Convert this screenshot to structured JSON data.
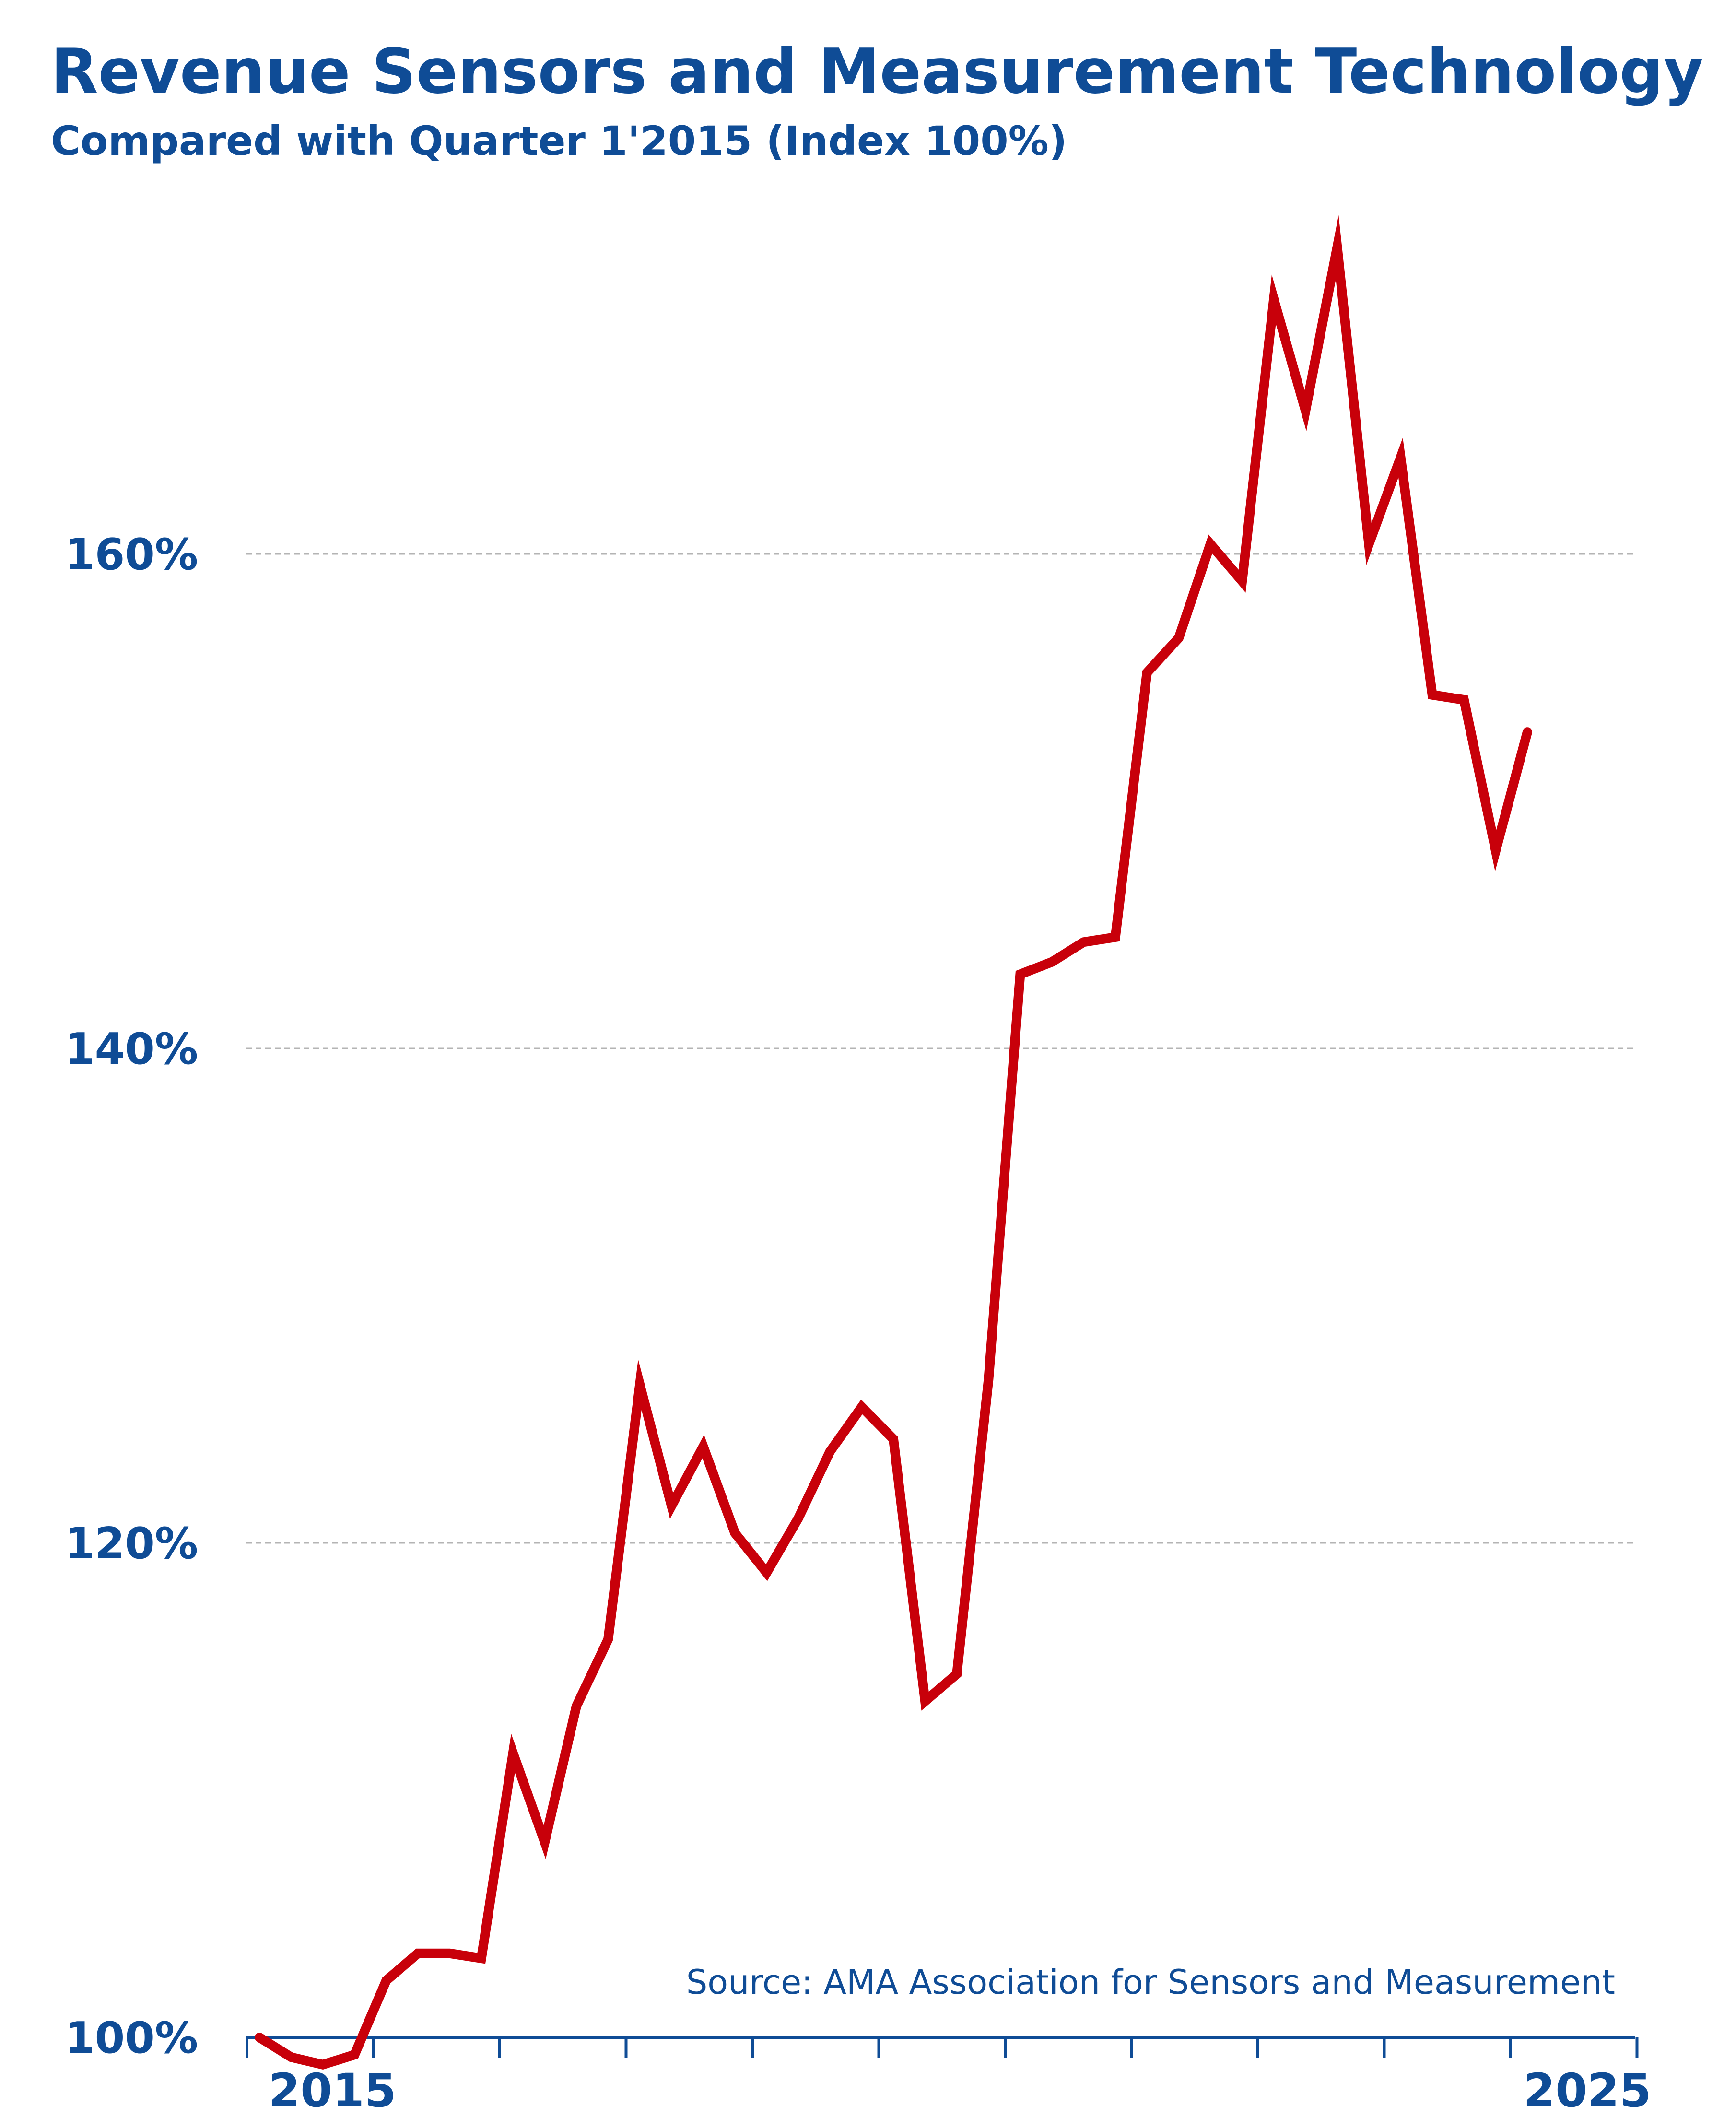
{
  "chart_data": {
    "type": "line",
    "title": "Revenue Sensors and Measurement Technology",
    "subtitle": "Compared with Quarter 1'2015 (Index 100%)",
    "source": "Source: AMA Association  for Sensors and Measurement",
    "xlabel": "",
    "ylabel": "",
    "x_tick_labels": [
      "2015",
      "2025"
    ],
    "y_ticks": [
      100,
      120,
      140,
      160
    ],
    "y_tick_labels": [
      "100%",
      "120%",
      "140%",
      "160%"
    ],
    "ylim": [
      100,
      175
    ],
    "grid": true,
    "colors": {
      "line": "#c8000a",
      "text": "#0f4c96",
      "axis": "#0f4c96",
      "grid": "#b4b4b4"
    },
    "series": [
      {
        "values": [
          100.0,
          99.2,
          98.9,
          99.3,
          102.3,
          103.4,
          103.4,
          103.2,
          111.5,
          107.9,
          113.4,
          116.1,
          126.4,
          121.5,
          123.9,
          120.4,
          118.8,
          121.0,
          123.7,
          125.5,
          124.2,
          113.6,
          114.7,
          126.6,
          143.0,
          143.5,
          144.3,
          144.5,
          155.2,
          156.6,
          160.4,
          158.9,
          170.3,
          165.8,
          172.4,
          160.4,
          163.9,
          154.3,
          154.1,
          148.0,
          152.8
        ]
      }
    ]
  }
}
